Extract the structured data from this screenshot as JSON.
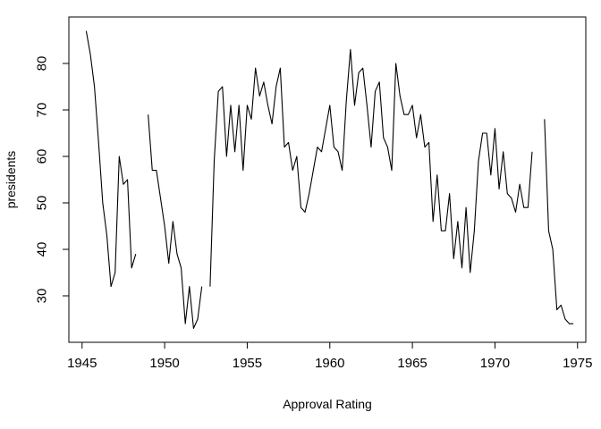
{
  "chart_data": {
    "type": "line",
    "xlabel": "Approval Rating",
    "ylabel": "presidents",
    "xlim": [
      1944.2,
      1975.5
    ],
    "ylim": [
      20,
      90
    ],
    "xticks": [
      1945,
      1950,
      1955,
      1960,
      1965,
      1970,
      1975
    ],
    "yticks": [
      30,
      40,
      50,
      60,
      70,
      80
    ],
    "grid": false,
    "series": [
      {
        "color": "#000000",
        "x_start": 1945,
        "x_step": 0.25,
        "values": [
          null,
          87,
          82,
          75,
          63,
          50,
          43,
          32,
          35,
          60,
          54,
          55,
          36,
          39,
          null,
          null,
          69,
          57,
          57,
          51,
          45,
          37,
          46,
          39,
          36,
          24,
          32,
          23,
          25,
          32,
          null,
          32,
          59,
          74,
          75,
          60,
          71,
          61,
          71,
          57,
          71,
          68,
          79,
          73,
          76,
          71,
          67,
          75,
          79,
          62,
          63,
          57,
          60,
          49,
          48,
          52,
          57,
          62,
          61,
          66,
          71,
          62,
          61,
          57,
          72,
          83,
          71,
          78,
          79,
          71,
          62,
          74,
          76,
          64,
          62,
          57,
          80,
          73,
          69,
          69,
          71,
          64,
          69,
          62,
          63,
          46,
          56,
          44,
          44,
          52,
          38,
          46,
          36,
          49,
          35,
          44,
          59,
          65,
          65,
          56,
          66,
          53,
          61,
          52,
          51,
          48,
          54,
          49,
          49,
          61,
          null,
          null,
          68,
          44,
          40,
          27,
          28,
          25,
          24,
          24
        ]
      }
    ]
  }
}
